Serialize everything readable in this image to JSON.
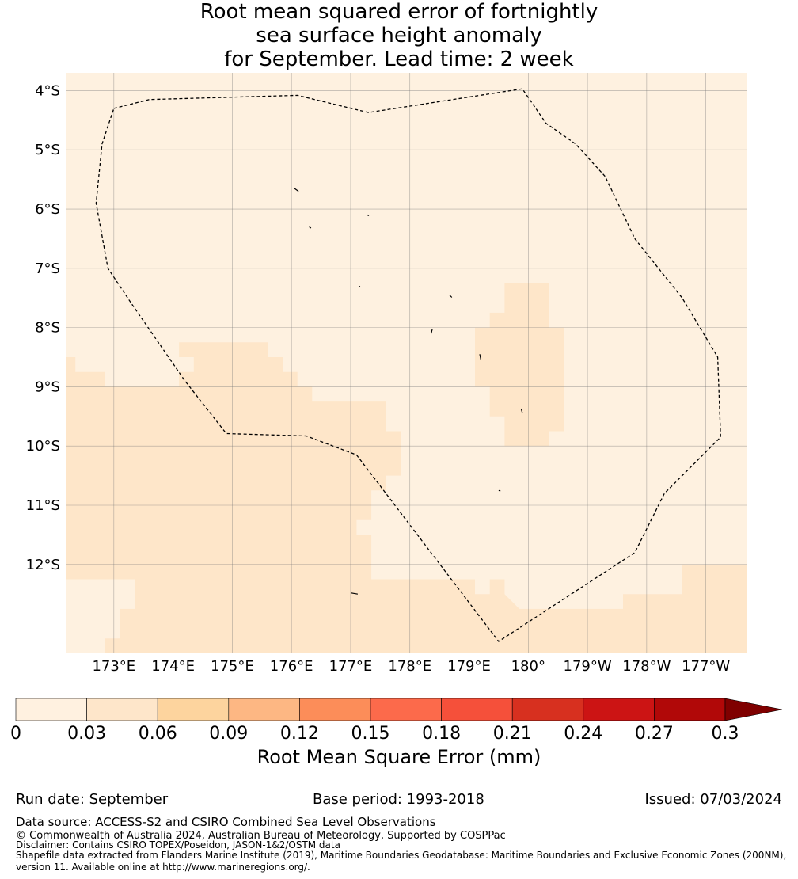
{
  "title": {
    "line1": "Root mean squared error of fortnightly",
    "line2": "sea surface height anomaly",
    "line3": "for September. Lead time: 2 week"
  },
  "map": {
    "extent": {
      "lon_min": 172.2,
      "lon_max": 183.7,
      "lat_min": -13.5,
      "lat_max": -3.7
    },
    "lat_ticks": [
      {
        "lat": -4,
        "label": "4°S"
      },
      {
        "lat": -5,
        "label": "5°S"
      },
      {
        "lat": -6,
        "label": "6°S"
      },
      {
        "lat": -7,
        "label": "7°S"
      },
      {
        "lat": -8,
        "label": "8°S"
      },
      {
        "lat": -9,
        "label": "9°S"
      },
      {
        "lat": -10,
        "label": "10°S"
      },
      {
        "lat": -11,
        "label": "11°S"
      },
      {
        "lat": -12,
        "label": "12°S"
      }
    ],
    "lon_ticks": [
      {
        "lon": 173,
        "label": "173°E"
      },
      {
        "lon": 174,
        "label": "174°E"
      },
      {
        "lon": 175,
        "label": "175°E"
      },
      {
        "lon": 176,
        "label": "176°E"
      },
      {
        "lon": 177,
        "label": "177°E"
      },
      {
        "lon": 178,
        "label": "178°E"
      },
      {
        "lon": 179,
        "label": "179°E"
      },
      {
        "lon": 180,
        "label": "180°"
      },
      {
        "lon": 181,
        "label": "179°W"
      },
      {
        "lon": 182,
        "label": "178°W"
      },
      {
        "lon": 183,
        "label": "177°W"
      }
    ],
    "background_color": "#fef1e0",
    "higher_error_color": "#fee6c9",
    "higher_error_regions": [
      [
        [
          172.2,
          -8.5
        ],
        [
          172.35,
          -8.5
        ],
        [
          172.35,
          -8.75
        ],
        [
          172.85,
          -8.75
        ],
        [
          172.85,
          -9.0
        ],
        [
          174.1,
          -9.0
        ],
        [
          174.1,
          -8.75
        ],
        [
          174.35,
          -8.75
        ],
        [
          174.35,
          -8.5
        ],
        [
          174.1,
          -8.5
        ],
        [
          174.1,
          -8.25
        ],
        [
          175.6,
          -8.25
        ],
        [
          175.6,
          -8.5
        ],
        [
          175.85,
          -8.5
        ],
        [
          175.85,
          -8.75
        ],
        [
          176.1,
          -8.75
        ],
        [
          176.1,
          -9.0
        ],
        [
          176.35,
          -9.0
        ],
        [
          176.35,
          -9.25
        ],
        [
          177.6,
          -9.25
        ],
        [
          177.6,
          -9.75
        ],
        [
          177.85,
          -9.75
        ],
        [
          177.85,
          -10.5
        ],
        [
          177.6,
          -10.5
        ],
        [
          177.6,
          -10.75
        ],
        [
          177.35,
          -10.75
        ],
        [
          177.35,
          -11.25
        ],
        [
          177.1,
          -11.25
        ],
        [
          177.1,
          -11.5
        ],
        [
          177.35,
          -11.5
        ],
        [
          177.35,
          -12.25
        ],
        [
          179.1,
          -12.25
        ],
        [
          179.1,
          -12.5
        ],
        [
          179.35,
          -12.5
        ],
        [
          179.35,
          -12.25
        ],
        [
          179.6,
          -12.25
        ],
        [
          179.6,
          -12.5
        ],
        [
          179.85,
          -12.75
        ],
        [
          181.6,
          -12.75
        ],
        [
          181.6,
          -12.5
        ],
        [
          182.6,
          -12.5
        ],
        [
          182.6,
          -12.0
        ],
        [
          183.7,
          -12.0
        ],
        [
          183.7,
          -13.5
        ],
        [
          172.85,
          -13.5
        ],
        [
          172.85,
          -13.25
        ],
        [
          173.1,
          -13.25
        ],
        [
          173.1,
          -12.75
        ],
        [
          173.35,
          -12.75
        ],
        [
          173.35,
          -12.25
        ],
        [
          172.2,
          -12.25
        ]
      ],
      [
        [
          179.6,
          -7.25
        ],
        [
          180.35,
          -7.25
        ],
        [
          180.35,
          -8.0
        ],
        [
          180.6,
          -8.0
        ],
        [
          180.6,
          -9.75
        ],
        [
          180.35,
          -9.75
        ],
        [
          180.35,
          -10.0
        ],
        [
          179.6,
          -10.0
        ],
        [
          179.6,
          -9.5
        ],
        [
          179.35,
          -9.5
        ],
        [
          179.35,
          -9.0
        ],
        [
          179.1,
          -9.0
        ],
        [
          179.1,
          -8.0
        ],
        [
          179.35,
          -8.0
        ],
        [
          179.35,
          -7.75
        ],
        [
          179.6,
          -7.75
        ]
      ]
    ],
    "eez_boundary": [
      [
        173.0,
        -4.3
      ],
      [
        173.6,
        -4.15
      ],
      [
        176.1,
        -4.08
      ],
      [
        177.3,
        -4.37
      ],
      [
        179.9,
        -3.97
      ],
      [
        180.3,
        -4.55
      ],
      [
        180.8,
        -4.9
      ],
      [
        181.3,
        -5.45
      ],
      [
        181.8,
        -6.5
      ],
      [
        182.6,
        -7.5
      ],
      [
        183.2,
        -8.5
      ],
      [
        183.25,
        -9.85
      ],
      [
        182.3,
        -10.8
      ],
      [
        181.8,
        -11.8
      ],
      [
        179.5,
        -13.3
      ],
      [
        177.1,
        -10.15
      ],
      [
        176.25,
        -9.83
      ],
      [
        174.9,
        -9.79
      ],
      [
        174.2,
        -8.9
      ],
      [
        173.3,
        -7.6
      ],
      [
        172.9,
        -7.0
      ],
      [
        172.7,
        -5.9
      ],
      [
        172.8,
        -4.9
      ]
    ],
    "islands": [
      [
        [
          176.05,
          -5.65
        ],
        [
          176.12,
          -5.7
        ]
      ],
      [
        [
          176.3,
          -6.3
        ],
        [
          176.33,
          -6.32
        ]
      ],
      [
        [
          177.28,
          -6.1
        ],
        [
          177.31,
          -6.11
        ]
      ],
      [
        [
          177.14,
          -7.3
        ],
        [
          177.16,
          -7.31
        ]
      ],
      [
        [
          178.67,
          -7.45
        ],
        [
          178.71,
          -7.49
        ]
      ],
      [
        [
          178.38,
          -8.02
        ],
        [
          178.36,
          -8.1
        ]
      ],
      [
        [
          179.18,
          -8.45
        ],
        [
          179.2,
          -8.55
        ]
      ],
      [
        [
          179.88,
          -9.37
        ],
        [
          179.9,
          -9.44
        ]
      ],
      [
        [
          179.5,
          -10.75
        ],
        [
          179.53,
          -10.76
        ]
      ],
      [
        [
          177.0,
          -12.48
        ],
        [
          177.12,
          -12.5
        ]
      ]
    ]
  },
  "colorbar": {
    "title": "Root Mean Square Error (mm)",
    "bounds": [
      0,
      0.03,
      0.06,
      0.09,
      0.12,
      0.15,
      0.18,
      0.21,
      0.24,
      0.27,
      0.3
    ],
    "tick_labels": [
      "0",
      "0.03",
      "0.06",
      "0.09",
      "0.12",
      "0.15",
      "0.18",
      "0.21",
      "0.24",
      "0.27",
      "0.3"
    ],
    "colors": [
      "#fff1e0",
      "#fee6ca",
      "#fdd49e",
      "#fdb783",
      "#fc8d59",
      "#fc6a4b",
      "#f5503a",
      "#d7301f",
      "#cc1414",
      "#b10808"
    ],
    "extend_color": "#7f0000"
  },
  "footer": {
    "run_date": "Run date: September",
    "base_period": "Base period: 1993-2018",
    "issued": "Issued: 07/03/2024",
    "data_source": "Data source: ACCESS-S2 and CSIRO Combined Sea Level Observations",
    "copyright": "© Commonwealth of Australia 2024, Australian Bureau of Meteorology, Supported by COSPPac",
    "disclaimer": "Disclaimer: Contains CSIRO TOPEX/Poseidon, JASON-1&2/OSTM data",
    "shapefile_line1": "Shapefile data extracted from Flanders Marine Institute (2019), Maritime Boundaries Geodatabase: Maritime Boundaries and Exclusive Economic Zones (200NM),",
    "shapefile_line2": "version 11. Available online at http://www.marineregions.org/."
  }
}
